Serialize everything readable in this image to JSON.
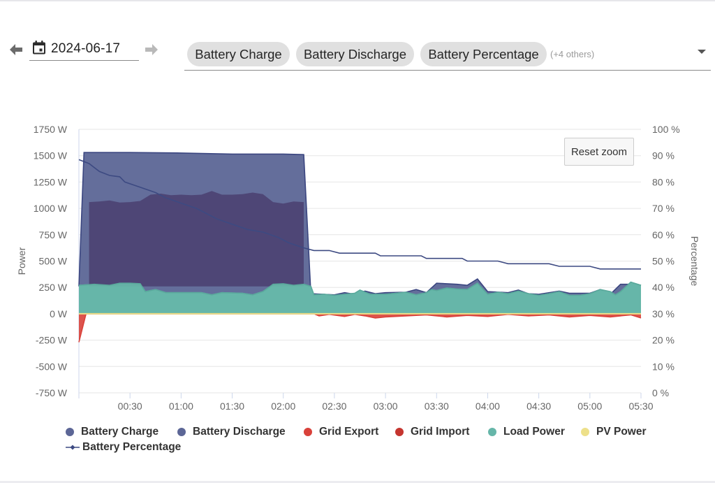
{
  "toolbar": {
    "date_value": "2024-06-17",
    "chips": [
      "Battery Charge",
      "Battery Discharge",
      "Battery Percentage"
    ],
    "others_label": "(+4 others)",
    "reset_zoom_label": "Reset zoom"
  },
  "icons": {
    "prev": "arrow-left-icon",
    "next": "arrow-right-icon",
    "calendar": "calendar-icon",
    "dropdown": "chevron-down-icon"
  },
  "colors": {
    "battery_charge": "#5c6696",
    "battery_discharge": "#5c6696",
    "grid_export": "#d9413a",
    "grid_import": "#c5352f",
    "load_power": "#66b6a9",
    "pv_power": "#ede08a",
    "battery_percentage": "#3d4a82",
    "grid_line": "#e6e6e6"
  },
  "chart_data": {
    "type": "area",
    "xlabel": "",
    "ylabel": "Power",
    "y2label": "Percentage",
    "x_range": [
      0,
      5.5
    ],
    "ylim": [
      -750,
      1750
    ],
    "y2lim": [
      0,
      100
    ],
    "x_ticks": [
      "00:30",
      "01:00",
      "01:30",
      "02:00",
      "02:30",
      "03:00",
      "03:30",
      "04:00",
      "04:30",
      "05:00",
      "05:30"
    ],
    "y_ticks": [
      "1750 W",
      "1500 W",
      "1250 W",
      "1000 W",
      "750 W",
      "500 W",
      "250 W",
      "0 W",
      "-250 W",
      "-500 W",
      "-750 W"
    ],
    "y2_ticks": [
      "100 %",
      "90 %",
      "80 %",
      "70 %",
      "60 %",
      "50 %",
      "40 %",
      "30 %",
      "20 %",
      "10 %",
      "0 %"
    ],
    "legend_position": "bottom",
    "grid": true,
    "series": [
      {
        "name": "Battery Charge",
        "kind": "area",
        "points": [
          [
            0,
            0
          ],
          [
            5.5,
            0
          ]
        ]
      },
      {
        "name": "Battery Discharge",
        "kind": "area",
        "points": [
          [
            0,
            260
          ],
          [
            0.05,
            1530
          ],
          [
            0.5,
            1530
          ],
          [
            1.0,
            1525
          ],
          [
            1.5,
            1515
          ],
          [
            2.0,
            1515
          ],
          [
            2.2,
            1510
          ],
          [
            2.27,
            190
          ],
          [
            2.5,
            180
          ],
          [
            2.6,
            200
          ],
          [
            2.7,
            185
          ],
          [
            2.8,
            215
          ],
          [
            2.9,
            190
          ],
          [
            3.0,
            200
          ],
          [
            3.2,
            205
          ],
          [
            3.3,
            230
          ],
          [
            3.4,
            200
          ],
          [
            3.5,
            290
          ],
          [
            3.6,
            285
          ],
          [
            3.7,
            280
          ],
          [
            3.8,
            270
          ],
          [
            3.9,
            330
          ],
          [
            4.0,
            210
          ],
          [
            4.2,
            200
          ],
          [
            4.3,
            225
          ],
          [
            4.4,
            190
          ],
          [
            4.5,
            185
          ],
          [
            4.7,
            215
          ],
          [
            4.8,
            195
          ],
          [
            5.0,
            195
          ],
          [
            5.1,
            230
          ],
          [
            5.2,
            185
          ],
          [
            5.3,
            280
          ],
          [
            5.4,
            280
          ],
          [
            5.5,
            270
          ]
        ]
      },
      {
        "name": "Grid Export",
        "kind": "area",
        "points": [
          [
            0,
            -270
          ],
          [
            0.07,
            0
          ],
          [
            2.3,
            0
          ],
          [
            2.35,
            -20
          ],
          [
            2.45,
            -5
          ],
          [
            2.6,
            -25
          ],
          [
            2.7,
            -5
          ],
          [
            2.8,
            -20
          ],
          [
            2.9,
            -40
          ],
          [
            3.0,
            -30
          ],
          [
            3.2,
            -20
          ],
          [
            3.4,
            -10
          ],
          [
            3.6,
            -30
          ],
          [
            3.8,
            -15
          ],
          [
            4.0,
            -25
          ],
          [
            4.2,
            -5
          ],
          [
            4.4,
            -20
          ],
          [
            4.6,
            -10
          ],
          [
            4.8,
            -30
          ],
          [
            5.0,
            -15
          ],
          [
            5.2,
            -30
          ],
          [
            5.3,
            -20
          ],
          [
            5.4,
            -10
          ],
          [
            5.5,
            -40
          ]
        ]
      },
      {
        "name": "Grid Import",
        "kind": "area",
        "points": [
          [
            0,
            0
          ],
          [
            5.5,
            0
          ]
        ]
      },
      {
        "name": "Load Power",
        "kind": "area",
        "points": [
          [
            0,
            270
          ],
          [
            0.15,
            280
          ],
          [
            0.3,
            270
          ],
          [
            0.4,
            290
          ],
          [
            0.5,
            290
          ],
          [
            0.6,
            285
          ],
          [
            0.65,
            210
          ],
          [
            0.75,
            230
          ],
          [
            0.85,
            200
          ],
          [
            1.0,
            200
          ],
          [
            1.2,
            200
          ],
          [
            1.3,
            180
          ],
          [
            1.4,
            200
          ],
          [
            1.6,
            195
          ],
          [
            1.7,
            180
          ],
          [
            1.8,
            210
          ],
          [
            1.9,
            280
          ],
          [
            2.0,
            285
          ],
          [
            2.1,
            270
          ],
          [
            2.2,
            280
          ],
          [
            2.27,
            260
          ],
          [
            2.3,
            180
          ],
          [
            2.4,
            185
          ],
          [
            2.5,
            175
          ],
          [
            2.6,
            185
          ],
          [
            2.7,
            195
          ],
          [
            2.75,
            225
          ],
          [
            2.85,
            185
          ],
          [
            3.0,
            185
          ],
          [
            3.1,
            195
          ],
          [
            3.2,
            205
          ],
          [
            3.3,
            180
          ],
          [
            3.4,
            200
          ],
          [
            3.45,
            230
          ],
          [
            3.5,
            220
          ],
          [
            3.6,
            245
          ],
          [
            3.7,
            235
          ],
          [
            3.8,
            230
          ],
          [
            3.9,
            290
          ],
          [
            4.0,
            185
          ],
          [
            4.1,
            205
          ],
          [
            4.2,
            190
          ],
          [
            4.3,
            215
          ],
          [
            4.4,
            190
          ],
          [
            4.5,
            175
          ],
          [
            4.6,
            190
          ],
          [
            4.7,
            210
          ],
          [
            4.8,
            175
          ],
          [
            4.9,
            175
          ],
          [
            5.0,
            190
          ],
          [
            5.1,
            230
          ],
          [
            5.2,
            210
          ],
          [
            5.25,
            180
          ],
          [
            5.3,
            210
          ],
          [
            5.4,
            300
          ],
          [
            5.5,
            270
          ]
        ]
      },
      {
        "name": "PV Power",
        "kind": "line",
        "points": [
          [
            0,
            0
          ],
          [
            5.5,
            0
          ]
        ]
      },
      {
        "name": "Battery Percentage",
        "kind": "line",
        "axis": "right",
        "points": [
          [
            0,
            88.5
          ],
          [
            0.1,
            87
          ],
          [
            0.2,
            84
          ],
          [
            0.3,
            82.5
          ],
          [
            0.4,
            82
          ],
          [
            0.45,
            80
          ],
          [
            0.6,
            78
          ],
          [
            0.75,
            76
          ],
          [
            0.85,
            74
          ],
          [
            1.0,
            72
          ],
          [
            1.15,
            70
          ],
          [
            1.25,
            68
          ],
          [
            1.35,
            66
          ],
          [
            1.5,
            64
          ],
          [
            1.65,
            62
          ],
          [
            1.8,
            61
          ],
          [
            1.95,
            59
          ],
          [
            2.05,
            57
          ],
          [
            2.2,
            55
          ],
          [
            2.3,
            54
          ],
          [
            2.45,
            54
          ],
          [
            2.55,
            53
          ],
          [
            2.9,
            53
          ],
          [
            2.95,
            52
          ],
          [
            3.35,
            52
          ],
          [
            3.4,
            51
          ],
          [
            3.75,
            51
          ],
          [
            3.8,
            50
          ],
          [
            4.1,
            50
          ],
          [
            4.2,
            49
          ],
          [
            4.6,
            49
          ],
          [
            4.7,
            48
          ],
          [
            5.0,
            48
          ],
          [
            5.1,
            47
          ],
          [
            5.5,
            47
          ]
        ]
      }
    ]
  }
}
